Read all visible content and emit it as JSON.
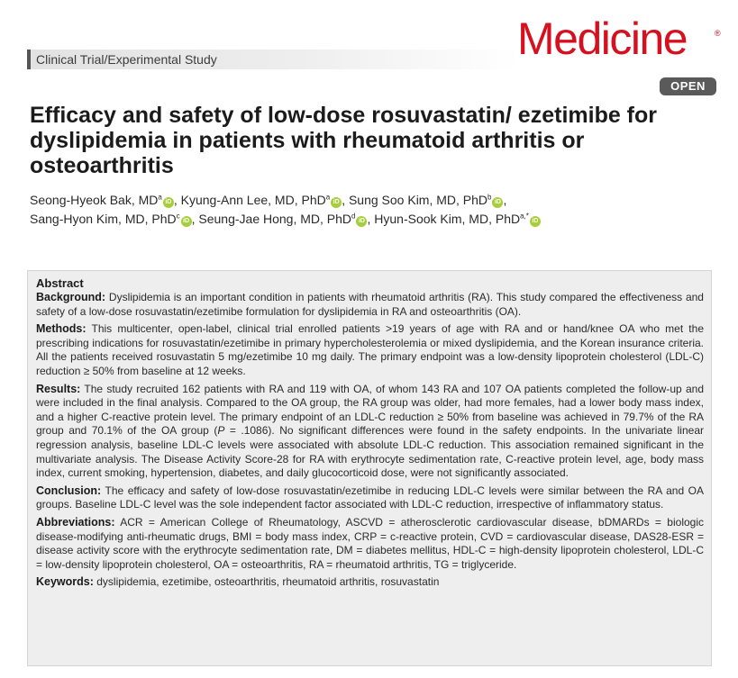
{
  "header": {
    "article_type": "Clinical Trial/Experimental Study",
    "journal_name": "Medicine",
    "journal_mark": "®",
    "open_badge": "OPEN"
  },
  "article": {
    "title": "Efficacy and safety of low-dose rosuvastatin/ ezetimibe for dyslipidemia in patients with rheumatoid arthritis or osteoarthritis"
  },
  "authors": [
    {
      "name": "Seong-Hyeok Bak, MD",
      "aff": "a",
      "sep": ", "
    },
    {
      "name": "Kyung-Ann Lee, MD, PhD",
      "aff": "a",
      "sep": ", "
    },
    {
      "name": "Sung Soo Kim, MD, PhD",
      "aff": "b",
      "sep": ","
    },
    {
      "name": "Sang-Hyon Kim, MD, PhD",
      "aff": "c",
      "sep": ", "
    },
    {
      "name": "Seung-Jae Hong, MD, PhD",
      "aff": "d",
      "sep": ", "
    },
    {
      "name": "Hyun-Sook Kim, MD, PhD",
      "aff": "a,*",
      "sep": ""
    }
  ],
  "orcid_label": "iD",
  "abstract": {
    "heading": "Abstract",
    "background": {
      "label": "Background:",
      "text": "Dyslipidemia is an important condition in patients with rheumatoid arthritis (RA). This study compared the effectiveness and safety of a low-dose rosuvastatin/ezetimibe formulation for dyslipidemia in RA and osteoarthritis (OA)."
    },
    "methods": {
      "label": "Methods:",
      "text": "This multicenter, open-label, clinical trial enrolled patients >19 years of age with RA and or hand/knee OA who met the prescribing indications for rosuvastatin/ezetimibe in primary hypercholesterolemia or mixed dyslipidemia, and the Korean insurance criteria. All the patients received rosuvastatin 5 mg/ezetimibe 10 mg daily. The primary endpoint was a low-density lipoprotein cholesterol (LDL-C) reduction ≥ 50% from baseline at 12 weeks."
    },
    "results": {
      "label": "Results:",
      "text_before": "The study recruited 162 patients with RA and 119 with OA, of whom 143 RA and 107 OA patients completed the follow-up and were included in the final analysis. Compared to the OA group, the RA group was older, had more females, had a lower body mass index, and a higher C-reactive protein level. The primary endpoint of an LDL-C reduction ≥ 50% from baseline was achieved in 79.7% of the RA group and 70.1% of the OA group (",
      "p_symbol": "P",
      "text_after": " = .1086). No significant differences were found in the safety endpoints. In the univariate linear regression analysis, baseline LDL-C levels were associated with absolute LDL-C reduction. This association remained significant in the multivariate analysis. The Disease Activity Score-28 for RA with erythrocyte sedimentation rate, C-reactive protein level, age, body mass index, current smoking, hypertension, diabetes, and daily glucocorticoid dose, were not significantly associated."
    },
    "conclusion": {
      "label": "Conclusion:",
      "text": "The efficacy and safety of low-dose rosuvastatin/ezetimibe in reducing LDL-C levels were similar between the RA and OA groups. Baseline LDL-C level was the sole independent factor associated with LDL-C reduction, irrespective of inflammatory status."
    },
    "abbreviations": {
      "label": "Abbreviations:",
      "text": "ACR = American College of Rheumatology, ASCVD = atherosclerotic cardiovascular disease, bDMARDs = biologic disease-modifying anti-rheumatic drugs, BMI = body mass index, CRP = c-reactive protein, CVD = cardiovascular disease, DAS28-ESR = disease activity score with the erythrocyte sedimentation rate, DM = diabetes mellitus, HDL-C = high-density lipoprotein cholesterol, LDL-C = low-density lipoprotein cholesterol, OA = osteoarthritis, RA = rheumatoid arthritis, TG = triglyceride."
    },
    "keywords": {
      "label": "Keywords:",
      "text": "dyslipidemia, ezetimibe, osteoarthritis, rheumatoid arthritis, rosuvastatin"
    }
  },
  "colors": {
    "brand_red": "#d7101f",
    "orcid_green": "#a6ce39",
    "badge_gray": "#5a5a5a",
    "abstract_bg": "#eeeeee"
  }
}
